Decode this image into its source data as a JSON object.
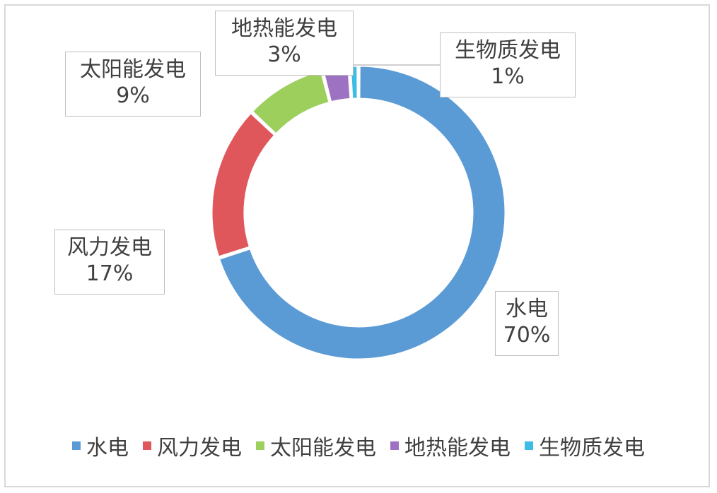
{
  "chart_data": {
    "type": "pie",
    "categories": [
      "水电",
      "风力发电",
      "太阳能发电",
      "地热能发电",
      "生物质发电"
    ],
    "values": [
      70,
      17,
      9,
      3,
      1
    ],
    "value_labels": [
      "70%",
      "17%",
      "9%",
      "3%",
      "1%"
    ],
    "colors": [
      "#5b9bd5",
      "#e0575b",
      "#9ccf5c",
      "#9e72c2",
      "#3dbde3"
    ],
    "donut": true,
    "legend": "bottom"
  }
}
